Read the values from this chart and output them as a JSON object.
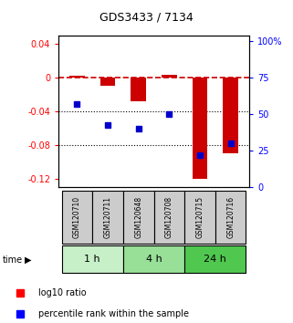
{
  "title": "GDS3433 / 7134",
  "samples": [
    "GSM120710",
    "GSM120711",
    "GSM120648",
    "GSM120708",
    "GSM120715",
    "GSM120716"
  ],
  "log10_ratio": [
    0.002,
    -0.01,
    -0.028,
    0.003,
    -0.12,
    -0.09
  ],
  "percentile_rank": [
    57,
    43,
    40,
    50,
    22,
    30
  ],
  "ylim_left": [
    -0.13,
    0.05
  ],
  "ylim_right": [
    0,
    104
  ],
  "yticks_left": [
    0.04,
    0.0,
    -0.04,
    -0.08,
    -0.12
  ],
  "yticks_right": [
    100,
    75,
    50,
    25,
    0
  ],
  "ytick_labels_left": [
    "0.04",
    "0",
    "-0.04",
    "-0.08",
    "-0.12"
  ],
  "ytick_labels_right": [
    "100%",
    "75",
    "50",
    "25",
    "0"
  ],
  "bar_color": "#cc0000",
  "dot_color": "#0000cc",
  "hline_color": "#cc0000",
  "grid_yticks": [
    -0.04,
    -0.08
  ],
  "bg_color": "#ffffff",
  "sample_box_color": "#cccccc",
  "bar_width": 0.5,
  "group_boundaries": [
    [
      0,
      1,
      "1 h",
      "#c8f0c8"
    ],
    [
      2,
      3,
      "4 h",
      "#98e098"
    ],
    [
      4,
      5,
      "24 h",
      "#50c850"
    ]
  ]
}
